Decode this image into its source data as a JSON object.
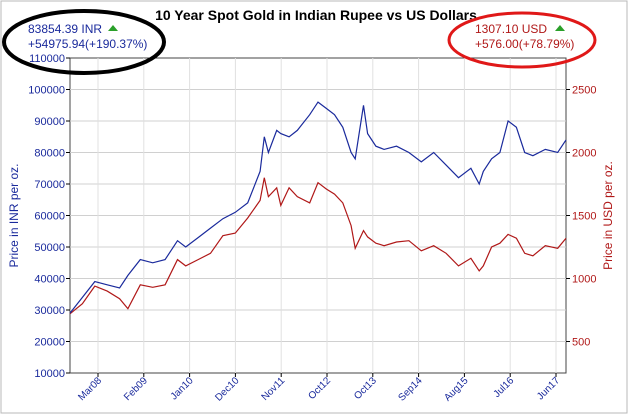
{
  "title": "10 Year Spot Gold in Indian Rupee vs US Dollars",
  "inr_box": {
    "price": "83854.39 INR",
    "change": "+54975.94(+190.37%)"
  },
  "usd_box": {
    "price": "1307.10 USD",
    "change": "+576.00(+78.79%)"
  },
  "colors": {
    "inr": "#1a2a9c",
    "usd": "#b01818",
    "circle_inr": "#000000",
    "circle_usd": "#e01818",
    "up_arrow": "#2aa02a",
    "axis": "#000000"
  },
  "chart_data": {
    "type": "line",
    "title": "10 Year Spot Gold in Indian Rupee vs US Dollars",
    "x_ticks": [
      "Mar08",
      "Feb09",
      "Jan10",
      "Dec10",
      "Nov11",
      "Oct12",
      "Oct13",
      "Sep14",
      "Aug15",
      "Jul16",
      "Jun17"
    ],
    "x_range": [
      "2007-09",
      "2017-09"
    ],
    "left_axis": {
      "label": "Price in INR per oz.",
      "ylim": [
        10000,
        110000
      ],
      "ticks": [
        10000,
        20000,
        30000,
        40000,
        50000,
        60000,
        70000,
        80000,
        90000,
        100000,
        110000
      ]
    },
    "right_axis": {
      "label": "Price in USD per oz.",
      "ylim": [
        250,
        2750
      ],
      "ticks": [
        500,
        1000,
        1500,
        2000,
        2500
      ]
    },
    "grid": true,
    "series": [
      {
        "name": "INR",
        "axis": "left",
        "color": "#1a2a9c",
        "x": [
          "2007-09",
          "2007-12",
          "2008-03",
          "2008-06",
          "2008-09",
          "2008-11",
          "2009-02",
          "2009-05",
          "2009-08",
          "2009-11",
          "2010-01",
          "2010-04",
          "2010-07",
          "2010-10",
          "2011-01",
          "2011-04",
          "2011-07",
          "2011-08",
          "2011-09",
          "2011-11",
          "2011-12",
          "2012-02",
          "2012-04",
          "2012-07",
          "2012-09",
          "2012-11",
          "2013-01",
          "2013-03",
          "2013-05",
          "2013-06",
          "2013-08",
          "2013-09",
          "2013-11",
          "2014-01",
          "2014-04",
          "2014-07",
          "2014-10",
          "2015-01",
          "2015-04",
          "2015-07",
          "2015-10",
          "2015-12",
          "2016-01",
          "2016-03",
          "2016-05",
          "2016-07",
          "2016-09",
          "2016-11",
          "2017-01",
          "2017-04",
          "2017-07",
          "2017-09"
        ],
        "values": [
          29000,
          34000,
          39000,
          38000,
          37000,
          41000,
          46000,
          45000,
          46000,
          52000,
          50000,
          53000,
          56000,
          59000,
          61000,
          64000,
          74000,
          85000,
          80000,
          87000,
          86000,
          85000,
          87000,
          92000,
          96000,
          94000,
          92000,
          88000,
          80000,
          78000,
          95000,
          86000,
          82000,
          81000,
          82000,
          80000,
          77000,
          80000,
          76000,
          72000,
          75000,
          70000,
          74000,
          78000,
          80000,
          90000,
          88000,
          80000,
          79000,
          81000,
          80000,
          84000
        ]
      },
      {
        "name": "USD",
        "axis": "right",
        "color": "#b01818",
        "x": [
          "2007-09",
          "2007-12",
          "2008-03",
          "2008-06",
          "2008-09",
          "2008-11",
          "2009-02",
          "2009-05",
          "2009-08",
          "2009-11",
          "2010-01",
          "2010-04",
          "2010-07",
          "2010-10",
          "2011-01",
          "2011-04",
          "2011-07",
          "2011-08",
          "2011-09",
          "2011-11",
          "2011-12",
          "2012-02",
          "2012-04",
          "2012-07",
          "2012-09",
          "2012-11",
          "2013-01",
          "2013-03",
          "2013-05",
          "2013-06",
          "2013-08",
          "2013-09",
          "2013-11",
          "2014-01",
          "2014-04",
          "2014-07",
          "2014-10",
          "2015-01",
          "2015-04",
          "2015-07",
          "2015-10",
          "2015-12",
          "2016-01",
          "2016-03",
          "2016-05",
          "2016-07",
          "2016-09",
          "2016-11",
          "2017-01",
          "2017-04",
          "2017-07",
          "2017-09"
        ],
        "values": [
          720,
          800,
          940,
          900,
          840,
          760,
          950,
          930,
          950,
          1150,
          1100,
          1150,
          1200,
          1340,
          1360,
          1480,
          1620,
          1800,
          1650,
          1720,
          1580,
          1720,
          1650,
          1600,
          1760,
          1710,
          1670,
          1600,
          1420,
          1240,
          1380,
          1330,
          1280,
          1260,
          1290,
          1300,
          1220,
          1260,
          1200,
          1100,
          1160,
          1060,
          1100,
          1250,
          1280,
          1350,
          1320,
          1200,
          1180,
          1260,
          1240,
          1320
        ]
      }
    ]
  }
}
